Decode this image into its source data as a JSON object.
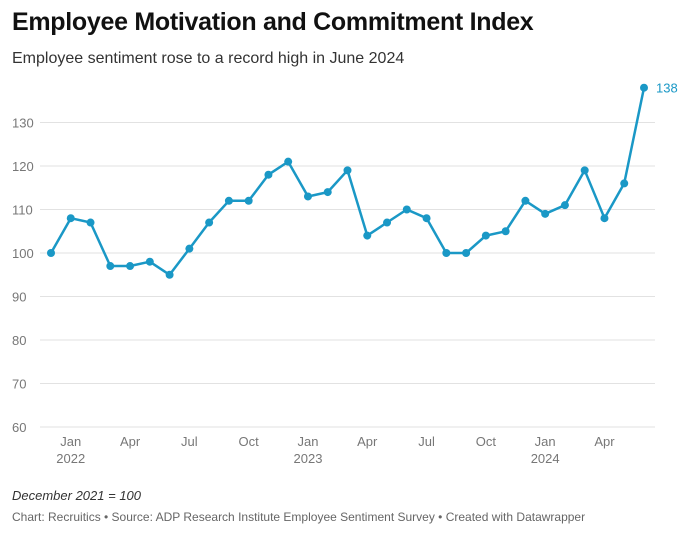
{
  "title": "Employee Motivation and Commitment Index",
  "subtitle": "Employee sentiment rose to a record high in June 2024",
  "note": "December 2021 = 100",
  "credits": "Chart: Recruitics • Source: ADP Research Institute Employee Sentiment Survey • Created with Datawrapper",
  "colors": {
    "line": "#1a98c6",
    "grid": "#e2e2e2",
    "axis_text": "#777777",
    "last_label": "#1a98c6"
  },
  "chart_data": {
    "type": "line",
    "x": [
      "2021-12",
      "2022-01",
      "2022-02",
      "2022-03",
      "2022-04",
      "2022-05",
      "2022-06",
      "2022-07",
      "2022-08",
      "2022-09",
      "2022-10",
      "2022-11",
      "2022-12",
      "2023-01",
      "2023-02",
      "2023-03",
      "2023-04",
      "2023-05",
      "2023-06",
      "2023-07",
      "2023-08",
      "2023-09",
      "2023-10",
      "2023-11",
      "2023-12",
      "2024-01",
      "2024-02",
      "2024-03",
      "2024-04",
      "2024-05",
      "2024-06"
    ],
    "series": [
      {
        "values": [
          100,
          108,
          107,
          97,
          97,
          98,
          95,
          101,
          107,
          112,
          112,
          118,
          121,
          113,
          114,
          119,
          104,
          107,
          110,
          108,
          100,
          100,
          104,
          105,
          112,
          109,
          111,
          119,
          108,
          116,
          138
        ]
      }
    ],
    "ylim": [
      60,
      140
    ],
    "yticks": [
      60,
      70,
      80,
      90,
      100,
      110,
      120,
      130
    ],
    "xticks": [
      {
        "x": "2022-01",
        "label": "Jan",
        "year": "2022"
      },
      {
        "x": "2022-04",
        "label": "Apr",
        "year": ""
      },
      {
        "x": "2022-07",
        "label": "Jul",
        "year": ""
      },
      {
        "x": "2022-10",
        "label": "Oct",
        "year": ""
      },
      {
        "x": "2023-01",
        "label": "Jan",
        "year": "2023"
      },
      {
        "x": "2023-04",
        "label": "Apr",
        "year": ""
      },
      {
        "x": "2023-07",
        "label": "Jul",
        "year": ""
      },
      {
        "x": "2023-10",
        "label": "Oct",
        "year": ""
      },
      {
        "x": "2024-01",
        "label": "Jan",
        "year": "2024"
      },
      {
        "x": "2024-04",
        "label": "Apr",
        "year": ""
      }
    ],
    "labels": [
      {
        "x": "2024-06",
        "text": "138"
      }
    ],
    "grid": true
  }
}
